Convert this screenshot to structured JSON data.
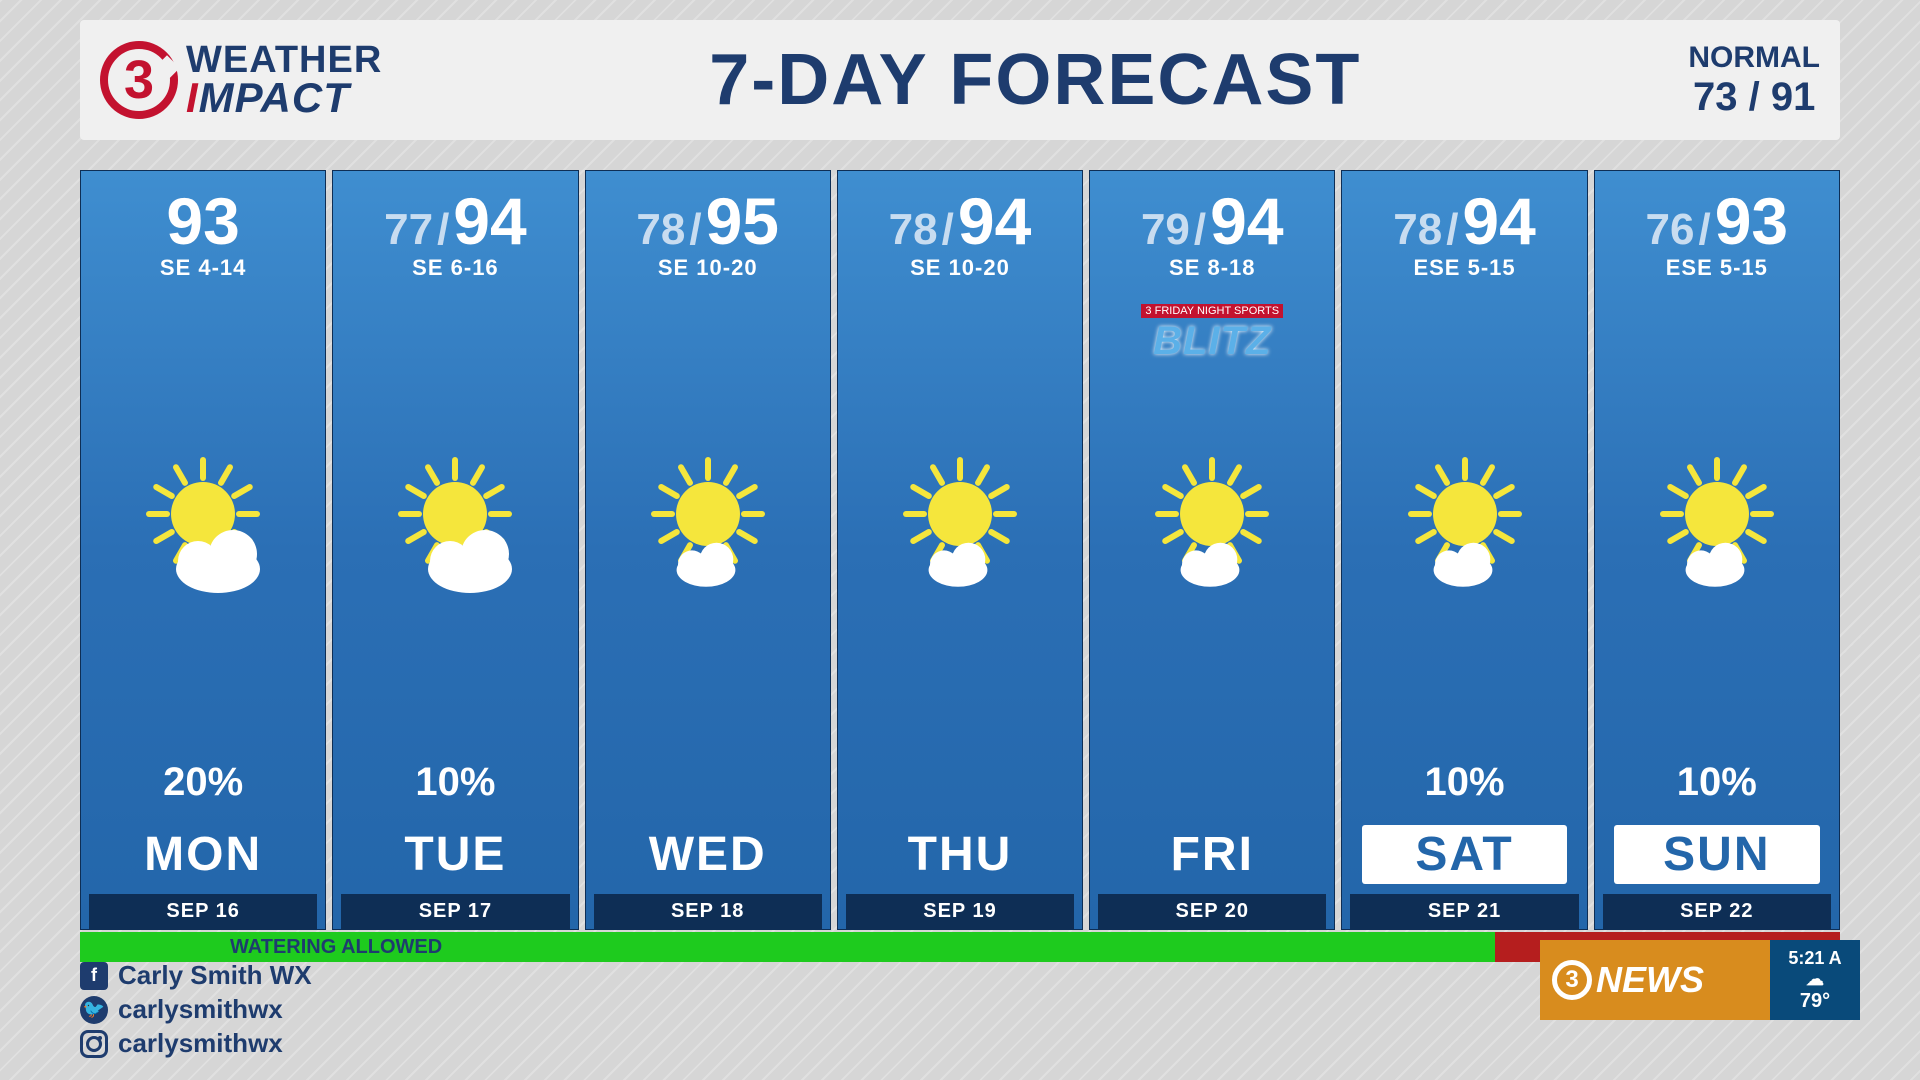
{
  "header": {
    "logo_number": "3",
    "logo_line1": "WEATHER",
    "logo_line2_pre": "I",
    "logo_line2_main": "MPACT",
    "title": "7-DAY FORECAST",
    "normal_label": "NORMAL",
    "normal_values": "73 / 91"
  },
  "colors": {
    "brand_red": "#c3122f",
    "brand_navy": "#1e3c6e",
    "card_top": "#3f8ed0",
    "card_bottom": "#2366aa",
    "date_bar": "#0e2e55",
    "water_green": "#1ecb1e",
    "water_red": "#b51e1e",
    "bug_orange": "#d88c1e",
    "bug_blue": "#094a7a"
  },
  "days": [
    {
      "hi": "93",
      "lo": "",
      "wind": "SE 4-14",
      "precip": "20%",
      "name": "MON",
      "date": "SEP 16",
      "weekend": false,
      "icon": "partly",
      "blitz": false
    },
    {
      "hi": "94",
      "lo": "77",
      "wind": "SE 6-16",
      "precip": "10%",
      "name": "TUE",
      "date": "SEP 17",
      "weekend": false,
      "icon": "partly",
      "blitz": false
    },
    {
      "hi": "95",
      "lo": "78",
      "wind": "SE 10-20",
      "precip": "",
      "name": "WED",
      "date": "SEP 18",
      "weekend": false,
      "icon": "mostlysun",
      "blitz": false
    },
    {
      "hi": "94",
      "lo": "78",
      "wind": "SE 10-20",
      "precip": "",
      "name": "THU",
      "date": "SEP 19",
      "weekend": false,
      "icon": "mostlysun",
      "blitz": false
    },
    {
      "hi": "94",
      "lo": "79",
      "wind": "SE 8-18",
      "precip": "",
      "name": "FRI",
      "date": "SEP 20",
      "weekend": false,
      "icon": "mostlysun",
      "blitz": true
    },
    {
      "hi": "94",
      "lo": "78",
      "wind": "ESE 5-15",
      "precip": "10%",
      "name": "SAT",
      "date": "SEP 21",
      "weekend": true,
      "icon": "mostlysun",
      "blitz": false
    },
    {
      "hi": "93",
      "lo": "76",
      "wind": "ESE 5-15",
      "precip": "10%",
      "name": "SUN",
      "date": "SEP 22",
      "weekend": true,
      "icon": "mostlysun",
      "blitz": false
    }
  ],
  "watering": {
    "label": "WATERING ALLOWED",
    "green_span_days": 5.5,
    "red_span_days": 1.5
  },
  "blitz": {
    "top_text": "3 FRIDAY NIGHT SPORTS",
    "main_text": "BLITZ"
  },
  "socials": {
    "facebook": "Carly Smith WX",
    "twitter": "carlysmithwx",
    "instagram": "carlysmithwx"
  },
  "bug": {
    "brand": "NEWS",
    "brand_num": "3",
    "time": "5:21 A",
    "temp": "79°"
  }
}
